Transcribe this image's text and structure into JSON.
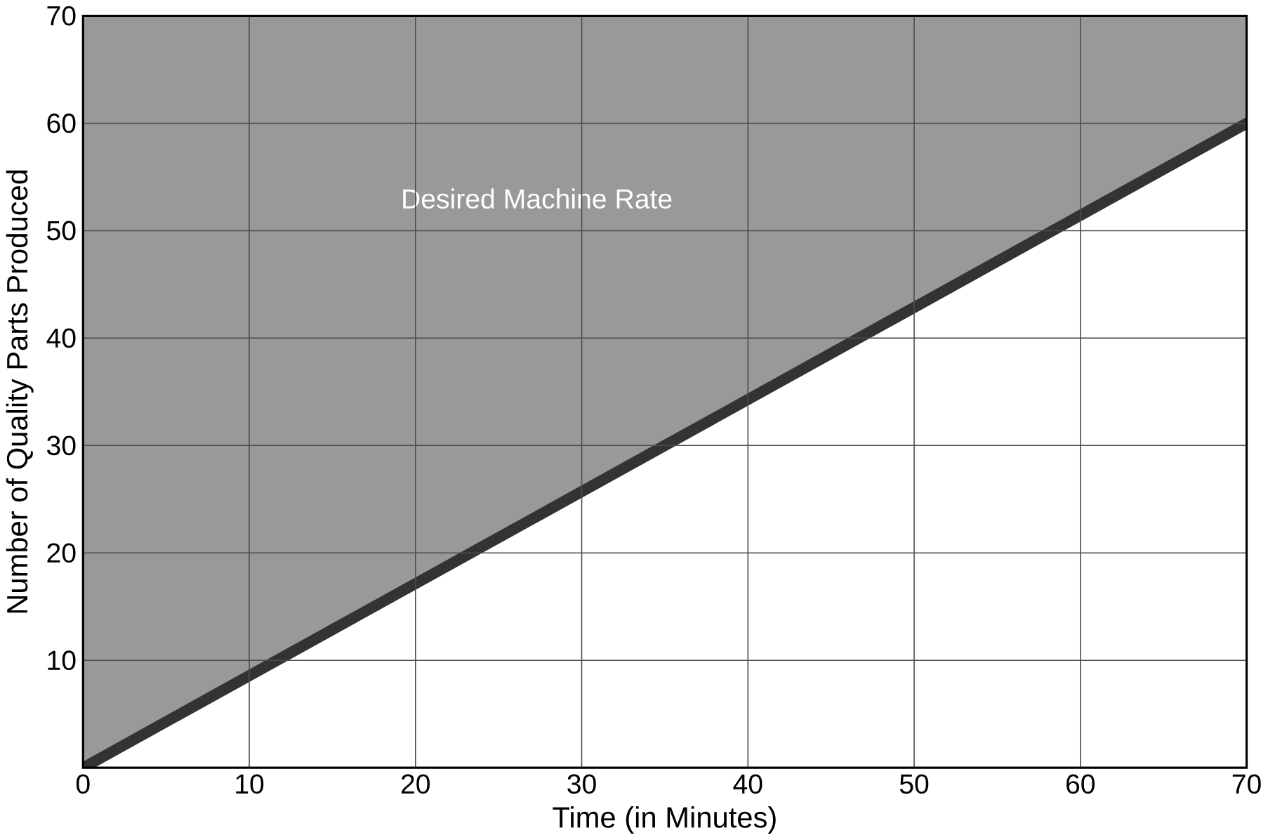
{
  "chart_data": {
    "type": "line",
    "xlabel": "Time (in Minutes)",
    "ylabel": "Number of Quality Parts Produced",
    "x": [
      0,
      70
    ],
    "series": [
      {
        "color": "#333333",
        "values": [
          0,
          60
        ],
        "lower": [
          0,
          60
        ],
        "upper": [
          70,
          70
        ]
      }
    ],
    "annotations": [
      "Desired Machine Rate"
    ],
    "xlim": [
      0,
      70
    ],
    "ylim": [
      0,
      70
    ],
    "xticks": [
      0,
      10,
      20,
      30,
      40,
      50,
      60,
      70
    ],
    "yticks": [
      10,
      20,
      30,
      40,
      50,
      60,
      70
    ],
    "grid": true,
    "marker": "none",
    "line_style": "solid"
  }
}
